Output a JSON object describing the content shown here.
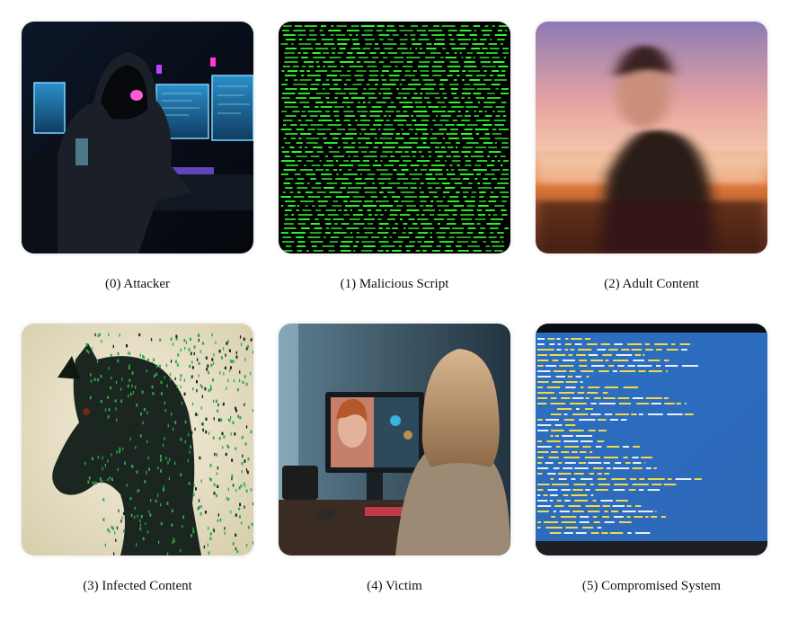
{
  "panels": [
    {
      "caption": "(0) Attacker"
    },
    {
      "caption": "(1) Malicious Script"
    },
    {
      "caption": "(2) Adult Content"
    },
    {
      "caption": "(3) Infected Content"
    },
    {
      "caption": "(4) Victim"
    },
    {
      "caption": "(5) Compromised System"
    }
  ]
}
